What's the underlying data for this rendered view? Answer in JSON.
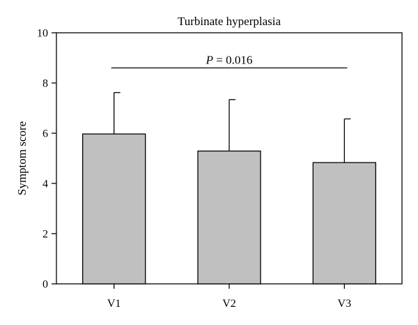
{
  "chart_data": {
    "type": "bar",
    "title": "Turbinate hyperplasia",
    "xlabel": "",
    "ylabel": "Symptom score",
    "categories": [
      "V1",
      "V2",
      "V3"
    ],
    "values": [
      5.97,
      5.29,
      4.83
    ],
    "error_upper": [
      7.62,
      7.34,
      6.57
    ],
    "ylim": [
      0,
      10
    ],
    "yticks": [
      "0",
      "2",
      "4",
      "6",
      "8",
      "10"
    ],
    "annotation": {
      "p_symbol": "P",
      "p_rest": " = 0.016",
      "y": 8.6
    },
    "grid": false,
    "legend": "none",
    "colors": {
      "bar_fill": "#c0c0c0",
      "stroke": "#000000"
    }
  }
}
